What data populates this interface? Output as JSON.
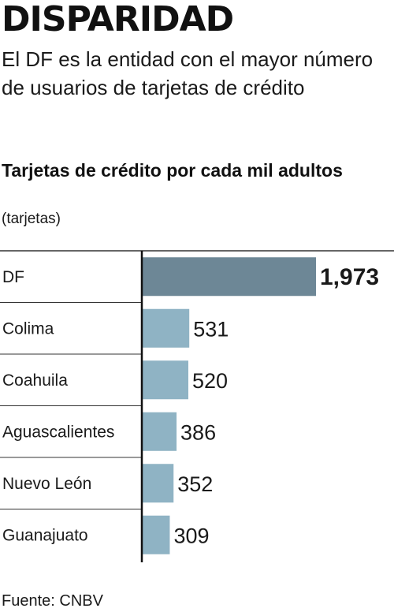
{
  "headline": "DISPARIDAD",
  "subhead": "El DF es la entidad con el mayor número de usuarios de tarjetas de crédito",
  "source": "Fuente: CNBV",
  "colors": {
    "highlight_bar": "#6d8796",
    "bar": "#8fb3c4",
    "axis": "#111111",
    "divider": "#333333"
  },
  "chart_data": {
    "type": "bar",
    "orientation": "horizontal",
    "title": "Tarjetas de crédito por cada mil adultos",
    "unit_label": "(tarjetas)",
    "categories": [
      "DF",
      "Colima",
      "Coahuila",
      "Aguascalientes",
      "Nuevo León",
      "Guanajuato"
    ],
    "values": [
      1973,
      531,
      520,
      386,
      352,
      309
    ],
    "value_labels": [
      "1,973",
      "531",
      "520",
      "386",
      "352",
      "309"
    ],
    "highlight_index": 0,
    "xlim": [
      0,
      1973
    ],
    "grid": false
  }
}
